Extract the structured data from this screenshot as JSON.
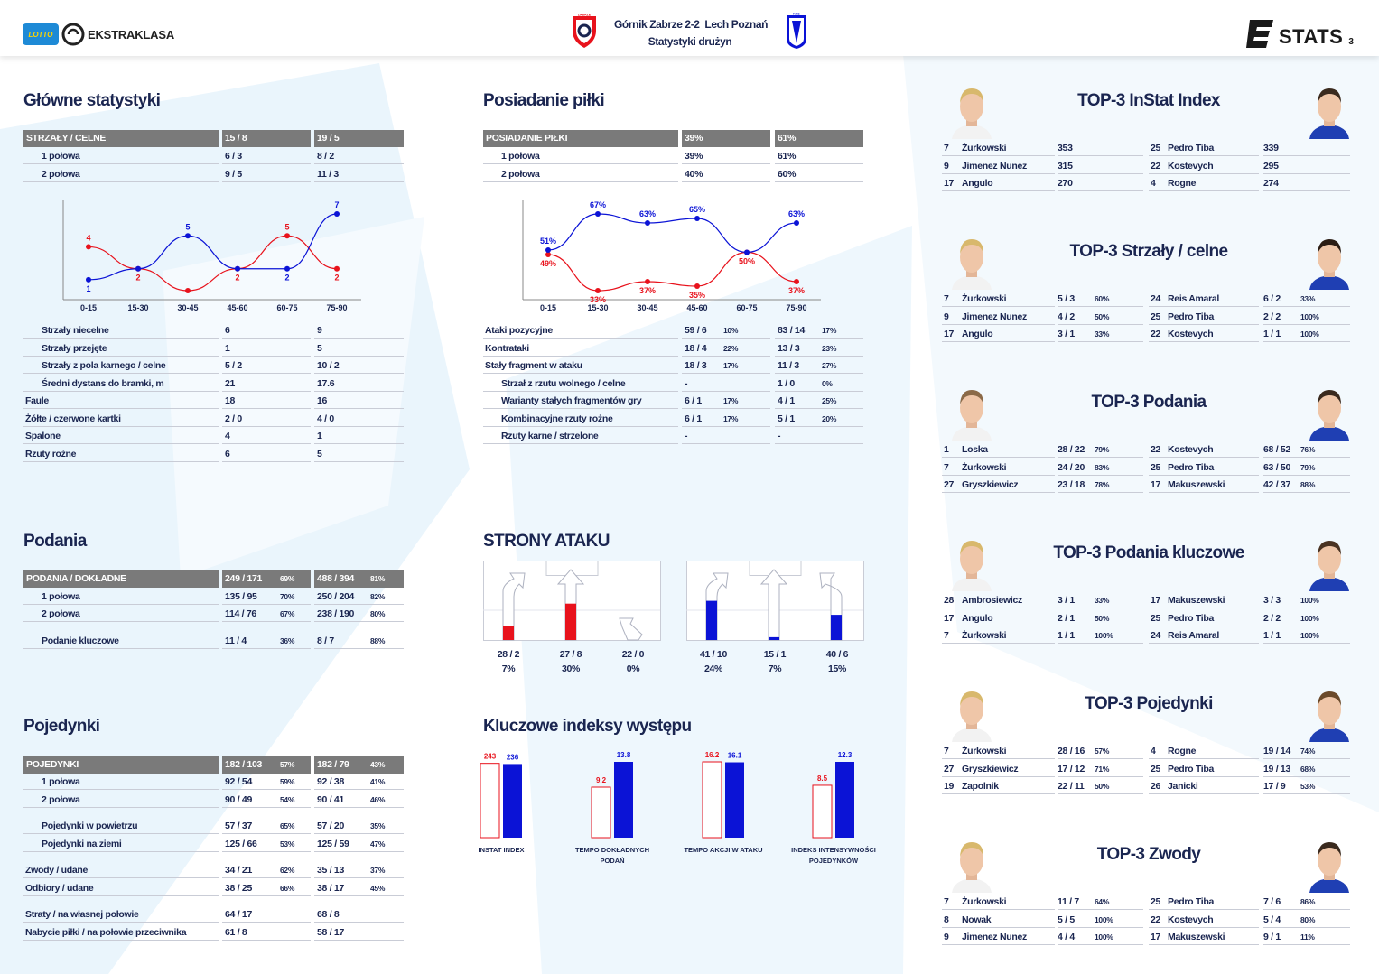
{
  "header": {
    "match": "Górnik Zabrze 2-2  Lech Poznań",
    "subtitle": "Statystyki drużyn",
    "league": "EKSTRAKLASA",
    "lotto": "LOTTO",
    "brand": "STATS",
    "page_number": "3",
    "crest_left": "ZABRZE",
    "crest_right": "KKS"
  },
  "colors": {
    "home": "#e8121c",
    "away": "#0b13d6",
    "header_row": "#7a7a7a",
    "text": "#1a2550"
  },
  "main_stats": {
    "title": "Główne statystyki",
    "header": {
      "label": "STRZAŁY / CELNE",
      "home": "15 / 8",
      "away": "19 / 5"
    },
    "halves": [
      {
        "label": "1 połowa",
        "home": "6 / 3",
        "away": "8 / 2"
      },
      {
        "label": "2 połowa",
        "home": "9 / 5",
        "away": "11 / 3"
      }
    ],
    "rows": [
      {
        "label": "Strzały niecelne",
        "home": "6",
        "away": "9",
        "indent": true
      },
      {
        "label": "Strzały przejęte",
        "home": "1",
        "away": "5",
        "indent": true
      },
      {
        "label": "Strzały z pola karnego / celne",
        "home": "5 / 2",
        "away": "10 / 2",
        "indent": true
      },
      {
        "label": "Średni dystans do bramki, m",
        "home": "21",
        "away": "17.6",
        "indent": true
      },
      {
        "label": "Faule",
        "home": "18",
        "away": "16",
        "indent": false
      },
      {
        "label": "Żółte / czerwone kartki",
        "home": "2 / 0",
        "away": "4 / 0",
        "indent": false
      },
      {
        "label": "Spalone",
        "home": "4",
        "away": "1",
        "indent": false
      },
      {
        "label": "Rzuty rożne",
        "home": "6",
        "away": "5",
        "indent": false
      }
    ]
  },
  "chart_data": [
    {
      "type": "line",
      "categories": [
        "0-15",
        "15-30",
        "30-45",
        "45-60",
        "60-75",
        "75-90"
      ],
      "series": [
        {
          "values": [
            4,
            2,
            0,
            2,
            5,
            2
          ],
          "color": "#e8121c"
        },
        {
          "values": [
            1,
            2,
            5,
            2,
            2,
            7
          ],
          "color": "#0b13d6"
        }
      ],
      "labels_red": [
        "4",
        "2",
        "",
        "2",
        "5",
        "2"
      ],
      "labels_blue": [
        "1",
        "",
        "5",
        "",
        "2",
        "7"
      ],
      "ylim": [
        0,
        7
      ],
      "grid": false
    },
    {
      "type": "line",
      "categories": [
        "0-15",
        "15-30",
        "30-45",
        "45-60",
        "60-75",
        "75-90"
      ],
      "series": [
        {
          "values": [
            49,
            33,
            37,
            35,
            50,
            37
          ],
          "color": "#e8121c"
        },
        {
          "values": [
            51,
            67,
            63,
            65,
            50,
            63
          ],
          "color": "#0b13d6"
        }
      ],
      "labels_red": [
        "49%",
        "33%",
        "37%",
        "35%",
        "50%",
        "37%"
      ],
      "labels_blue": [
        "51%",
        "67%",
        "63%",
        "65%",
        "",
        "63%"
      ],
      "ylim": [
        33,
        67
      ],
      "grid": false
    },
    {
      "type": "bar",
      "title": "Kluczowe indeksy występu",
      "categories": [
        "INSTAT INDEX",
        "TEMPO DOKŁADNYCH PODAŃ",
        "TEMPO AKCJI W ATAKU",
        "INDEKS INTENSYWNOŚCI POJEDYNKÓW"
      ],
      "series": [
        {
          "values": [
            243,
            9.2,
            16.2,
            8.5
          ],
          "color": "#e8121c"
        },
        {
          "values": [
            236,
            13.8,
            16.1,
            12.3
          ],
          "color": "#0b13d6"
        }
      ]
    }
  ],
  "possession": {
    "title": "Posiadanie piłki",
    "header": {
      "label": "POSIADANIE PIŁKI",
      "home": "39%",
      "away": "61%"
    },
    "halves": [
      {
        "label": "1 połowa",
        "home": "39%",
        "away": "61%"
      },
      {
        "label": "2 połowa",
        "home": "40%",
        "away": "60%"
      }
    ],
    "rows": [
      {
        "label": "Ataki pozycyjne",
        "home": "59 / 6",
        "home_pct": "10%",
        "away": "83 / 14",
        "away_pct": "17%",
        "indent": false
      },
      {
        "label": "Kontrataki",
        "home": "18 / 4",
        "home_pct": "22%",
        "away": "13 / 3",
        "away_pct": "23%",
        "indent": false
      },
      {
        "label": "Stały fragment w ataku",
        "home": "18 / 3",
        "home_pct": "17%",
        "away": "11 / 3",
        "away_pct": "27%",
        "indent": false
      },
      {
        "label": "Strzał z rzutu wolnego / celne",
        "home": "-",
        "home_pct": "",
        "away": "1 / 0",
        "away_pct": "0%",
        "indent": true
      },
      {
        "label": "Warianty stałych fragmentów gry",
        "home": "6 / 1",
        "home_pct": "17%",
        "away": "4 / 1",
        "away_pct": "25%",
        "indent": true
      },
      {
        "label": "Kombinacyjne rzuty rożne",
        "home": "6 / 1",
        "home_pct": "17%",
        "away": "5 / 1",
        "away_pct": "20%",
        "indent": true
      },
      {
        "label": "Rzuty karne / strzelone",
        "home": "-",
        "home_pct": "",
        "away": "-",
        "away_pct": "",
        "indent": true
      }
    ]
  },
  "passes": {
    "title": "Podania",
    "header": {
      "label": "PODANIA / DOKŁADNE",
      "home": "249 / 171",
      "home_pct": "69%",
      "away": "488 / 394",
      "away_pct": "81%"
    },
    "rows": [
      {
        "label": "1 połowa",
        "home": "135 / 95",
        "home_pct": "70%",
        "away": "250 / 204",
        "away_pct": "82%"
      },
      {
        "label": "2 połowa",
        "home": "114 / 76",
        "home_pct": "67%",
        "away": "238 / 190",
        "away_pct": "80%"
      },
      {
        "label": "Podanie kluczowe",
        "home": "11 / 4",
        "home_pct": "36%",
        "away": "8 / 7",
        "away_pct": "88%"
      }
    ]
  },
  "duels": {
    "title": "Pojedynki",
    "header": {
      "label": "POJEDYNKI",
      "home": "182 / 103",
      "home_pct": "57%",
      "away": "182 / 79",
      "away_pct": "43%"
    },
    "rows": [
      {
        "label": "1 połowa",
        "home": "92 / 54",
        "home_pct": "59%",
        "away": "92 / 38",
        "away_pct": "41%",
        "indent": true
      },
      {
        "label": "2 połowa",
        "home": "90 / 49",
        "home_pct": "54%",
        "away": "90 / 41",
        "away_pct": "46%",
        "indent": true
      },
      {
        "label": "Pojedynki w powietrzu",
        "home": "57 / 37",
        "home_pct": "65%",
        "away": "57 / 20",
        "away_pct": "35%",
        "indent": true
      },
      {
        "label": "Pojedynki na ziemi",
        "home": "125 / 66",
        "home_pct": "53%",
        "away": "125 / 59",
        "away_pct": "47%",
        "indent": true
      },
      {
        "label": "Zwody / udane",
        "home": "34 / 21",
        "home_pct": "62%",
        "away": "35 / 13",
        "away_pct": "37%",
        "indent": false
      },
      {
        "label": "Odbiory / udane",
        "home": "38 / 25",
        "home_pct": "66%",
        "away": "38 / 17",
        "away_pct": "45%",
        "indent": false
      },
      {
        "label": "Straty / na własnej połowie",
        "home": "64 / 17",
        "home_pct": "",
        "away": "68 / 8",
        "away_pct": "",
        "indent": false
      },
      {
        "label": "Nabycie piłki / na połowie przeciwnika",
        "home": "61 / 8",
        "home_pct": "",
        "away": "58 / 17",
        "away_pct": "",
        "indent": false
      }
    ]
  },
  "attack_sides": {
    "title": "STRONY ATAKU",
    "home": [
      {
        "value": "28 / 2",
        "pct": "7%",
        "level": 0.25
      },
      {
        "value": "27 / 8",
        "pct": "30%",
        "level": 0.65
      },
      {
        "value": "22 / 0",
        "pct": "0%",
        "level": 0
      }
    ],
    "away": [
      {
        "value": "41 / 10",
        "pct": "24%",
        "level": 0.7
      },
      {
        "value": "15 / 1",
        "pct": "7%",
        "level": 0.05
      },
      {
        "value": "40 / 6",
        "pct": "15%",
        "level": 0.45
      }
    ]
  },
  "key_index": {
    "title": "Kluczowe indeksy występu",
    "items": [
      {
        "home": "243",
        "away": "236",
        "label1": "INSTAT INDEX",
        "label2": ""
      },
      {
        "home": "9.2",
        "away": "13.8",
        "label1": "TEMPO DOKŁADNYCH",
        "label2": "PODAŃ"
      },
      {
        "home": "16.2",
        "away": "16.1",
        "label1": "TEMPO AKCJI W ATAKU",
        "label2": ""
      },
      {
        "home": "8.5",
        "away": "12.3",
        "label1": "INDEKS INTENSYWNOŚCI",
        "label2": "POJEDYNKÓW"
      }
    ]
  },
  "tops": [
    {
      "title": "TOP-3 InStat Index",
      "home": [
        {
          "num": "7",
          "name": "Żurkowski",
          "value": "353",
          "pct": ""
        },
        {
          "num": "9",
          "name": "Jimenez Nunez",
          "value": "315",
          "pct": ""
        },
        {
          "num": "17",
          "name": "Angulo",
          "value": "270",
          "pct": ""
        }
      ],
      "away": [
        {
          "num": "25",
          "name": "Pedro Tiba",
          "value": "339",
          "pct": ""
        },
        {
          "num": "22",
          "name": "Kostevych",
          "value": "295",
          "pct": ""
        },
        {
          "num": "4",
          "name": "Rogne",
          "value": "274",
          "pct": ""
        }
      ]
    },
    {
      "title": "TOP-3 Strzały / celne",
      "home": [
        {
          "num": "7",
          "name": "Żurkowski",
          "value": "5 / 3",
          "pct": "60%"
        },
        {
          "num": "9",
          "name": "Jimenez Nunez",
          "value": "4 / 2",
          "pct": "50%"
        },
        {
          "num": "17",
          "name": "Angulo",
          "value": "3 / 1",
          "pct": "33%"
        }
      ],
      "away": [
        {
          "num": "24",
          "name": "Reis Amaral",
          "value": "6 / 2",
          "pct": "33%"
        },
        {
          "num": "25",
          "name": "Pedro Tiba",
          "value": "2 / 2",
          "pct": "100%"
        },
        {
          "num": "22",
          "name": "Kostevych",
          "value": "1 / 1",
          "pct": "100%"
        }
      ]
    },
    {
      "title": "TOP-3 Podania",
      "home": [
        {
          "num": "1",
          "name": "Loska",
          "value": "28 / 22",
          "pct": "79%"
        },
        {
          "num": "7",
          "name": "Żurkowski",
          "value": "24 / 20",
          "pct": "83%"
        },
        {
          "num": "27",
          "name": "Gryszkiewicz",
          "value": "23 / 18",
          "pct": "78%"
        }
      ],
      "away": [
        {
          "num": "22",
          "name": "Kostevych",
          "value": "68 / 52",
          "pct": "76%"
        },
        {
          "num": "25",
          "name": "Pedro Tiba",
          "value": "63 / 50",
          "pct": "79%"
        },
        {
          "num": "17",
          "name": "Makuszewski",
          "value": "42 / 37",
          "pct": "88%"
        }
      ]
    },
    {
      "title": "TOP-3 Podania kluczowe",
      "home": [
        {
          "num": "28",
          "name": "Ambrosiewicz",
          "value": "3 / 1",
          "pct": "33%"
        },
        {
          "num": "17",
          "name": "Angulo",
          "value": "2 / 1",
          "pct": "50%"
        },
        {
          "num": "7",
          "name": "Żurkowski",
          "value": "1 / 1",
          "pct": "100%"
        }
      ],
      "away": [
        {
          "num": "17",
          "name": "Makuszewski",
          "value": "3 / 3",
          "pct": "100%"
        },
        {
          "num": "25",
          "name": "Pedro Tiba",
          "value": "2 / 2",
          "pct": "100%"
        },
        {
          "num": "24",
          "name": "Reis Amaral",
          "value": "1 / 1",
          "pct": "100%"
        }
      ]
    },
    {
      "title": "TOP-3 Pojedynki",
      "home": [
        {
          "num": "7",
          "name": "Żurkowski",
          "value": "28 / 16",
          "pct": "57%"
        },
        {
          "num": "27",
          "name": "Gryszkiewicz",
          "value": "17 / 12",
          "pct": "71%"
        },
        {
          "num": "19",
          "name": "Zapolnik",
          "value": "22 / 11",
          "pct": "50%"
        }
      ],
      "away": [
        {
          "num": "4",
          "name": "Rogne",
          "value": "19 / 14",
          "pct": "74%"
        },
        {
          "num": "25",
          "name": "Pedro Tiba",
          "value": "19 / 13",
          "pct": "68%"
        },
        {
          "num": "26",
          "name": "Janicki",
          "value": "17 / 9",
          "pct": "53%"
        }
      ]
    },
    {
      "title": "TOP-3 Zwody",
      "home": [
        {
          "num": "7",
          "name": "Żurkowski",
          "value": "11 / 7",
          "pct": "64%"
        },
        {
          "num": "8",
          "name": "Nowak",
          "value": "5 / 5",
          "pct": "100%"
        },
        {
          "num": "9",
          "name": "Jimenez Nunez",
          "value": "4 / 4",
          "pct": "100%"
        }
      ],
      "away": [
        {
          "num": "25",
          "name": "Pedro Tiba",
          "value": "7 / 6",
          "pct": "86%"
        },
        {
          "num": "22",
          "name": "Kostevych",
          "value": "5 / 4",
          "pct": "80%"
        },
        {
          "num": "17",
          "name": "Makuszewski",
          "value": "9 / 1",
          "pct": "11%"
        }
      ]
    }
  ]
}
